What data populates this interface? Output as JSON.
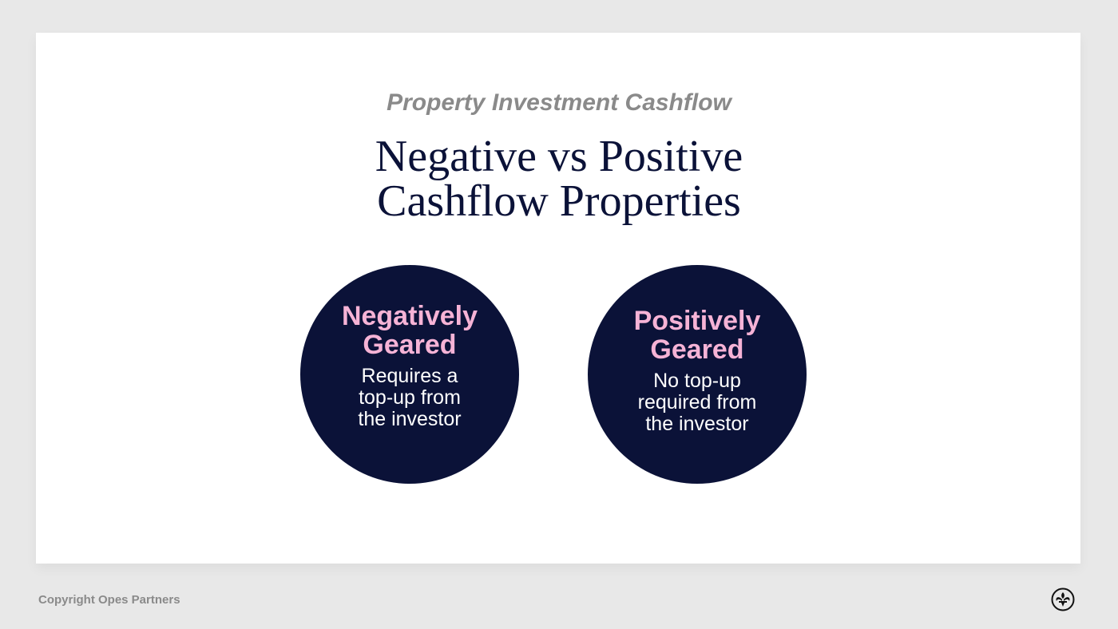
{
  "header": {
    "subtitle": "Property Investment Cashflow",
    "title_line1": "Negative vs Positive",
    "title_line2": "Cashflow Properties"
  },
  "circles": [
    {
      "heading_line1": "Negatively",
      "heading_line2": "Geared",
      "body_line1": "Requires a",
      "body_line2": "top-up from",
      "body_line3": "the investor"
    },
    {
      "heading_line1": "Positively",
      "heading_line2": "Geared",
      "body_line1": "No top-up",
      "body_line2": "required from",
      "body_line3": "the investor"
    }
  ],
  "footer": {
    "copyright": "Copyright Opes Partners",
    "logo_icon": "fleur-de-lis-icon"
  },
  "colors": {
    "navy": "#0b1238",
    "pink": "#f6b3d6",
    "gray": "#8a8a8a",
    "background": "#e8e8e8"
  }
}
